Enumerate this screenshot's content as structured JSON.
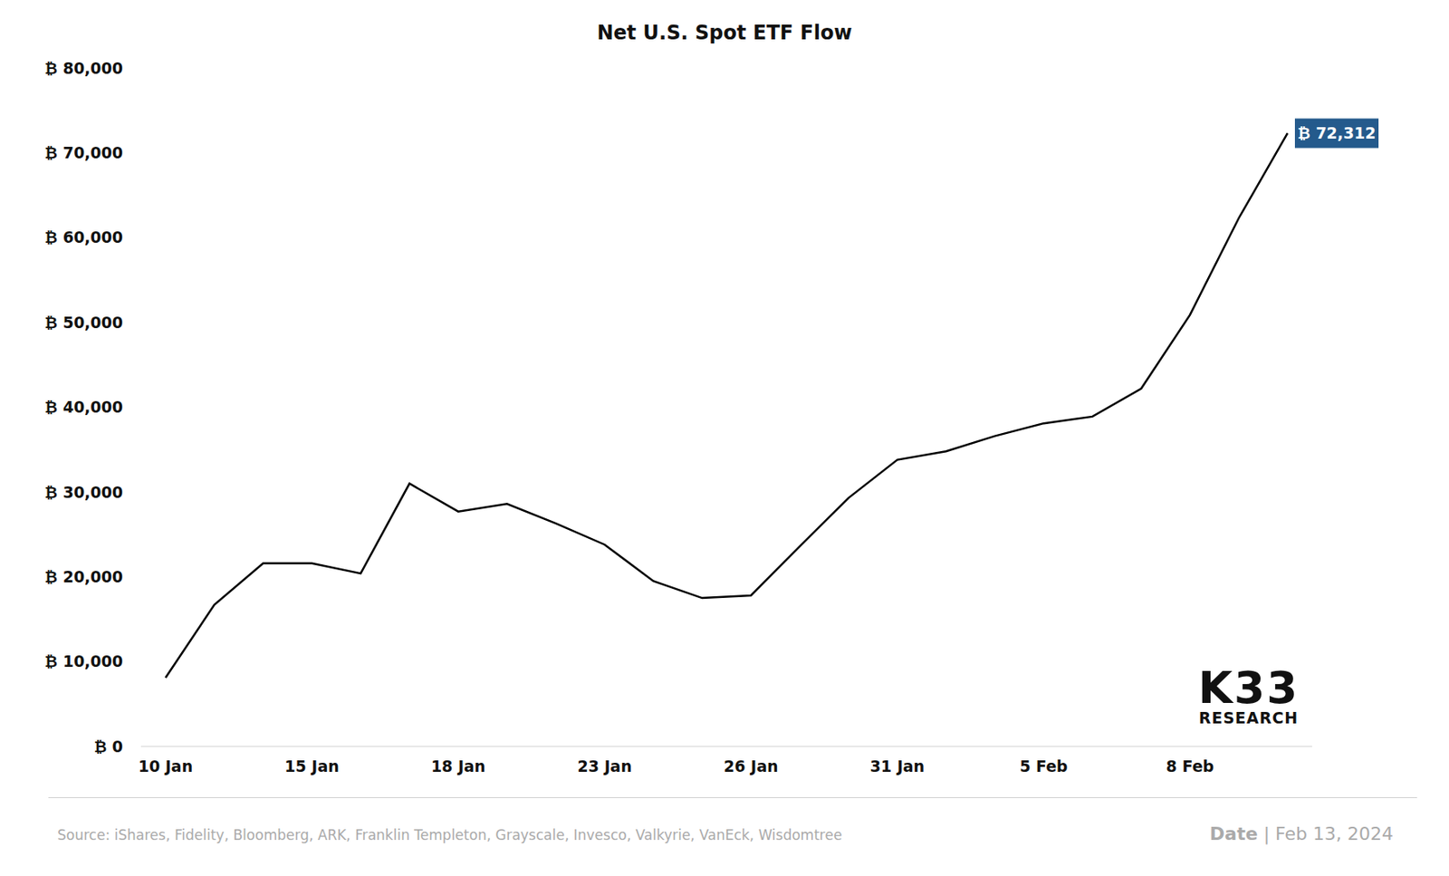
{
  "chart_data": {
    "type": "line",
    "title": "Net U.S. Spot ETF Flow",
    "categories": [
      "10 Jan",
      null,
      null,
      "15 Jan",
      null,
      null,
      "18 Jan",
      null,
      null,
      "23 Jan",
      null,
      null,
      "26 Jan",
      null,
      null,
      "31 Jan",
      null,
      null,
      "5 Feb",
      null,
      null,
      "8 Feb",
      null,
      null
    ],
    "series": [
      {
        "name": "Net U.S. Spot ETF Flow",
        "color": "#000000",
        "values": [
          8100,
          16700,
          21600,
          21600,
          20400,
          31000,
          27700,
          28600,
          26300,
          23800,
          19500,
          17500,
          17800,
          23600,
          29300,
          33800,
          34800,
          36600,
          38100,
          38900,
          42200,
          50900,
          62300,
          72312
        ],
        "value_labels": [
          null,
          null,
          null,
          null,
          null,
          null,
          null,
          null,
          null,
          null,
          null,
          null,
          null,
          null,
          null,
          null,
          null,
          null,
          null,
          null,
          null,
          null,
          null,
          "₿ 72,312"
        ]
      }
    ],
    "ylim": [
      0,
      80000
    ],
    "yticks": [
      {
        "value": 0,
        "label": "₿ 0"
      },
      {
        "value": 10000,
        "label": "₿ 10,000"
      },
      {
        "value": 20000,
        "label": "₿ 20,000"
      },
      {
        "value": 30000,
        "label": "₿ 30,000"
      },
      {
        "value": 40000,
        "label": "₿ 40,000"
      },
      {
        "value": 50000,
        "label": "₿ 50,000"
      },
      {
        "value": 60000,
        "label": "₿ 60,000"
      },
      {
        "value": 70000,
        "label": "₿ 70,000"
      },
      {
        "value": 80000,
        "label": "₿ 80,000"
      }
    ],
    "grid": false,
    "logo": [
      "K33",
      "RESEARCH"
    ],
    "source": "Source:  iShares, Fidelity, Bloomberg, ARK, Franklin Templeton, Grayscale, Invesco, Valkyrie, VanEck, Wisdomtree",
    "date_note": {
      "label": "Date",
      "separator": "|",
      "value": "Feb 13, 2024"
    }
  }
}
